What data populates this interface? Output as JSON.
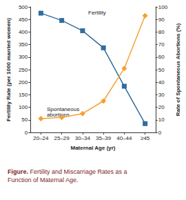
{
  "chart_data": {
    "type": "line",
    "title": "Figure. Fertility and Miscarriage Rates as a Function of Maternal Age.",
    "xlabel": "Maternal Age (yr)",
    "ylabel": "Fertility Rate (per 1000 married women)",
    "y2label": "Rate of Spontaneous Abortions (%)",
    "categories": [
      "20–24",
      "25–29",
      "30–34",
      "35–39",
      "40–44",
      "≥45"
    ],
    "series": [
      {
        "name": "Fertility",
        "color": "#2f6d9f",
        "marker": "square",
        "values": [
          475,
          446,
          405,
          337,
          184,
          35
        ]
      },
      {
        "name": "Spontaneous abortions",
        "color": "#f5a033",
        "marker": "diamond",
        "axis": "y2",
        "values": [
          11,
          12,
          15,
          25,
          51,
          93
        ]
      }
    ],
    "ylim": [
      0,
      500
    ],
    "yticks": [
      0,
      50,
      100,
      150,
      200,
      250,
      300,
      350,
      400,
      450,
      500
    ],
    "y2lim": [
      0,
      100
    ],
    "y2ticks": [
      0,
      10,
      20,
      30,
      40,
      50,
      60,
      70,
      80,
      90,
      100
    ],
    "grid": false
  }
}
